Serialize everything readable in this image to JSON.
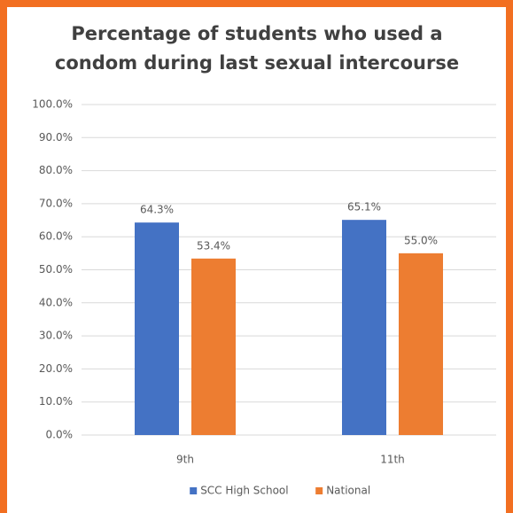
{
  "chart_data": {
    "type": "bar",
    "title": "Percentage of students who used a condom during last sexual intercourse",
    "categories": [
      "9th",
      "11th"
    ],
    "series": [
      {
        "name": "SCC High School",
        "color": "#4472c4",
        "values": [
          64.3,
          65.1
        ],
        "value_labels": [
          "64.3%",
          "65.1%"
        ]
      },
      {
        "name": "National",
        "color": "#ed7d31",
        "values": [
          53.4,
          55.0
        ],
        "value_labels": [
          "53.4%",
          "55.0%"
        ]
      }
    ],
    "ylim": [
      0,
      100
    ],
    "yticks": [
      {
        "value": 0,
        "label": "0.0%"
      },
      {
        "value": 10,
        "label": "10.0%"
      },
      {
        "value": 20,
        "label": "20.0%"
      },
      {
        "value": 30,
        "label": "30.0%"
      },
      {
        "value": 40,
        "label": "40.0%"
      },
      {
        "value": 50,
        "label": "50.0%"
      },
      {
        "value": 60,
        "label": "60.0%"
      },
      {
        "value": 70,
        "label": "70.0%"
      },
      {
        "value": 80,
        "label": "80.0%"
      },
      {
        "value": 90,
        "label": "90.0%"
      },
      {
        "value": 100,
        "label": "100.0%"
      }
    ],
    "grid": true,
    "legend": "bottom"
  }
}
